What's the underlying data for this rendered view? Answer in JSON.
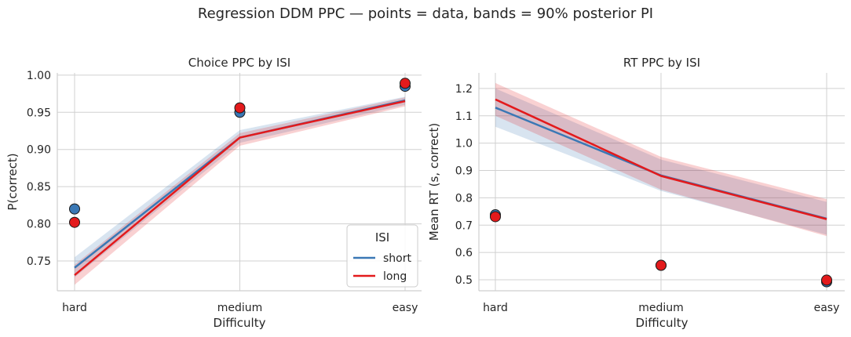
{
  "figure": {
    "suptitle": "Regression DDM PPC — points = data, bands = 90% posterior PI"
  },
  "colors": {
    "short": "#3a78b5",
    "long": "#e31a1c",
    "grid": "#d0d0d0",
    "axis": "#cfcfcf"
  },
  "chart_data": [
    {
      "type": "line",
      "title": "Choice PPC by ISI",
      "xlabel": "Difficulty",
      "ylabel": "P(correct)",
      "categories": [
        "hard",
        "medium",
        "easy"
      ],
      "ylim": [
        0.71,
        1.003
      ],
      "yticks": [
        0.75,
        0.8,
        0.85,
        0.9,
        0.95,
        1.0
      ],
      "ytick_labels": [
        "0.75",
        "0.80",
        "0.85",
        "0.90",
        "0.95",
        "1.00"
      ],
      "grid": true,
      "legend": {
        "title": "ISI",
        "position": "lower-right"
      },
      "series": [
        {
          "name": "short",
          "key": "short",
          "values": [
            0.741,
            0.916,
            0.966
          ],
          "band_lower": [
            0.728,
            0.909,
            0.96
          ],
          "band_upper": [
            0.755,
            0.926,
            0.971
          ],
          "data_points": [
            0.82,
            0.95,
            0.985
          ]
        },
        {
          "name": "long",
          "key": "long",
          "values": [
            0.731,
            0.916,
            0.965
          ],
          "band_lower": [
            0.718,
            0.905,
            0.958
          ],
          "band_upper": [
            0.745,
            0.922,
            0.97
          ],
          "data_points": [
            0.802,
            0.956,
            0.989
          ]
        }
      ]
    },
    {
      "type": "line",
      "title": "RT PPC by ISI",
      "xlabel": "Difficulty",
      "ylabel": "Mean RT (s, correct)",
      "categories": [
        "hard",
        "medium",
        "easy"
      ],
      "ylim": [
        0.46,
        1.257
      ],
      "yticks": [
        0.5,
        0.6,
        0.7,
        0.8,
        0.9,
        1.0,
        1.1,
        1.2
      ],
      "ytick_labels": [
        "0.5",
        "0.6",
        "0.7",
        "0.8",
        "0.9",
        "1.0",
        "1.1",
        "1.2"
      ],
      "grid": true,
      "legend": null,
      "series": [
        {
          "key": "short",
          "values": [
            1.13,
            0.882,
            0.724
          ],
          "band_lower": [
            1.06,
            0.825,
            0.665
          ],
          "band_upper": [
            1.2,
            0.94,
            0.785
          ],
          "data_points": [
            0.738,
            0.553,
            0.493
          ]
        },
        {
          "key": "long",
          "values": [
            1.16,
            0.88,
            0.722
          ],
          "band_lower": [
            1.1,
            0.83,
            0.66
          ],
          "band_upper": [
            1.22,
            0.95,
            0.795
          ],
          "data_points": [
            0.731,
            0.553,
            0.499
          ]
        }
      ]
    }
  ]
}
